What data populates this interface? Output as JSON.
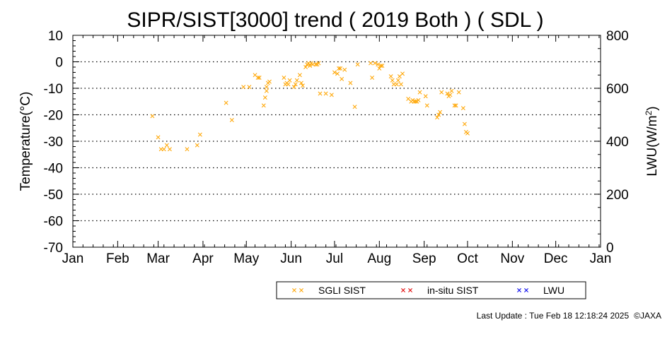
{
  "chart_data": {
    "type": "scatter",
    "title": "SIPR/SIST[3000] trend ( 2019 Both ) ( SDL )",
    "ylabel": "Temperature(°C)",
    "y2label_main": "LWU(W/m",
    "y2label_sup": "2",
    "y2label_tail": ")",
    "ylim": [
      -70,
      10
    ],
    "y2lim": [
      0,
      800
    ],
    "xlim": [
      1,
      366
    ],
    "y_ticks": [
      10,
      0,
      -10,
      -20,
      -30,
      -40,
      -50,
      -60,
      -70
    ],
    "y_tick_labels": [
      "10",
      "0",
      "-10",
      "-20",
      "-30",
      "-40",
      "-50",
      "-60",
      "-70"
    ],
    "y2_ticks": [
      800,
      600,
      400,
      200,
      0
    ],
    "y2_tick_labels": [
      "800",
      "600",
      "400",
      "200",
      "0"
    ],
    "x_ticks": [
      1,
      32,
      60,
      91,
      121,
      152,
      182,
      213,
      244,
      274,
      305,
      335,
      366
    ],
    "x_tick_labels": [
      "Jan",
      "Feb",
      "Mar",
      "Apr",
      "May",
      "Jun",
      "Jul",
      "Aug",
      "Sep",
      "Oct",
      "Nov",
      "Dec",
      "Jan"
    ],
    "x_unit": "day of year",
    "grid": "dotted horizontal",
    "legend_position": "bottom",
    "series": [
      {
        "name": "SGLI SIST",
        "color": "#ffa500",
        "marker": "x",
        "points": [
          [
            56,
            -20.5
          ],
          [
            60,
            -28.5
          ],
          [
            62,
            -33
          ],
          [
            64,
            -33
          ],
          [
            66,
            -31.5
          ],
          [
            68,
            -33
          ],
          [
            80,
            -33
          ],
          [
            87,
            -31.5
          ],
          [
            89,
            -27.5
          ],
          [
            107,
            -15.5
          ],
          [
            111,
            -22
          ],
          [
            119,
            -9.5
          ],
          [
            123,
            -9.5
          ],
          [
            127,
            -5
          ],
          [
            129,
            -6
          ],
          [
            130,
            -6
          ],
          [
            133,
            -16.5
          ],
          [
            134,
            -13.5
          ],
          [
            135,
            -11
          ],
          [
            135,
            -9.5
          ],
          [
            136,
            -8
          ],
          [
            137,
            -7.5
          ],
          [
            147,
            -6
          ],
          [
            148,
            -8.5
          ],
          [
            149,
            -8
          ],
          [
            150,
            -8.5
          ],
          [
            151,
            -7
          ],
          [
            154,
            -9.5
          ],
          [
            155,
            -8.5
          ],
          [
            156,
            -7
          ],
          [
            158,
            -5
          ],
          [
            159,
            -8
          ],
          [
            160,
            -9
          ],
          [
            162,
            -2
          ],
          [
            163,
            -1
          ],
          [
            164,
            -0.5
          ],
          [
            165,
            -1.5
          ],
          [
            166,
            -0.5
          ],
          [
            167,
            -1
          ],
          [
            169,
            -1
          ],
          [
            170,
            -1
          ],
          [
            171,
            -0.5
          ],
          [
            172,
            -12
          ],
          [
            176,
            -12
          ],
          [
            180,
            -12.5
          ],
          [
            182,
            -4
          ],
          [
            184,
            -4.5
          ],
          [
            185,
            -2.5
          ],
          [
            186,
            -2.5
          ],
          [
            187,
            -6.5
          ],
          [
            189,
            -3
          ],
          [
            193,
            -8
          ],
          [
            196,
            -17
          ],
          [
            198,
            -1
          ],
          [
            207,
            -0.5
          ],
          [
            208,
            -6
          ],
          [
            210,
            -0.5
          ],
          [
            212,
            -1
          ],
          [
            213,
            -2.5
          ],
          [
            214,
            -1.5
          ],
          [
            215,
            -1.5
          ],
          [
            221,
            -5.5
          ],
          [
            222,
            -7
          ],
          [
            223,
            -8.5
          ],
          [
            225,
            -8.5
          ],
          [
            226,
            -7
          ],
          [
            227,
            -5.5
          ],
          [
            228,
            -8.5
          ],
          [
            229,
            -4.5
          ],
          [
            233,
            -14
          ],
          [
            235,
            -15
          ],
          [
            236,
            -14.5
          ],
          [
            237,
            -15
          ],
          [
            238,
            -15
          ],
          [
            239,
            -15
          ],
          [
            240,
            -14.5
          ],
          [
            241,
            -11.5
          ],
          [
            245,
            -13
          ],
          [
            246,
            -16.5
          ],
          [
            253,
            -21
          ],
          [
            254,
            -20
          ],
          [
            255,
            -19
          ],
          [
            256,
            -11.5
          ],
          [
            260,
            -12
          ],
          [
            261,
            -13
          ],
          [
            262,
            -12.5
          ],
          [
            263,
            -11
          ],
          [
            265,
            -16.5
          ],
          [
            266,
            -16.5
          ],
          [
            268,
            -11.5
          ],
          [
            271,
            -17.5
          ],
          [
            272,
            -23.5
          ],
          [
            273,
            -26.5
          ],
          [
            274,
            -27
          ]
        ]
      },
      {
        "name": "in-situ SIST",
        "color": "#e00000",
        "marker": "x",
        "points": []
      },
      {
        "name": "LWU",
        "color": "#0000ee",
        "marker": "x",
        "points": []
      }
    ]
  },
  "footer": {
    "last_update": "Last Update : Tue Feb 18 12:18:24 2025",
    "copyright": "©JAXA"
  }
}
